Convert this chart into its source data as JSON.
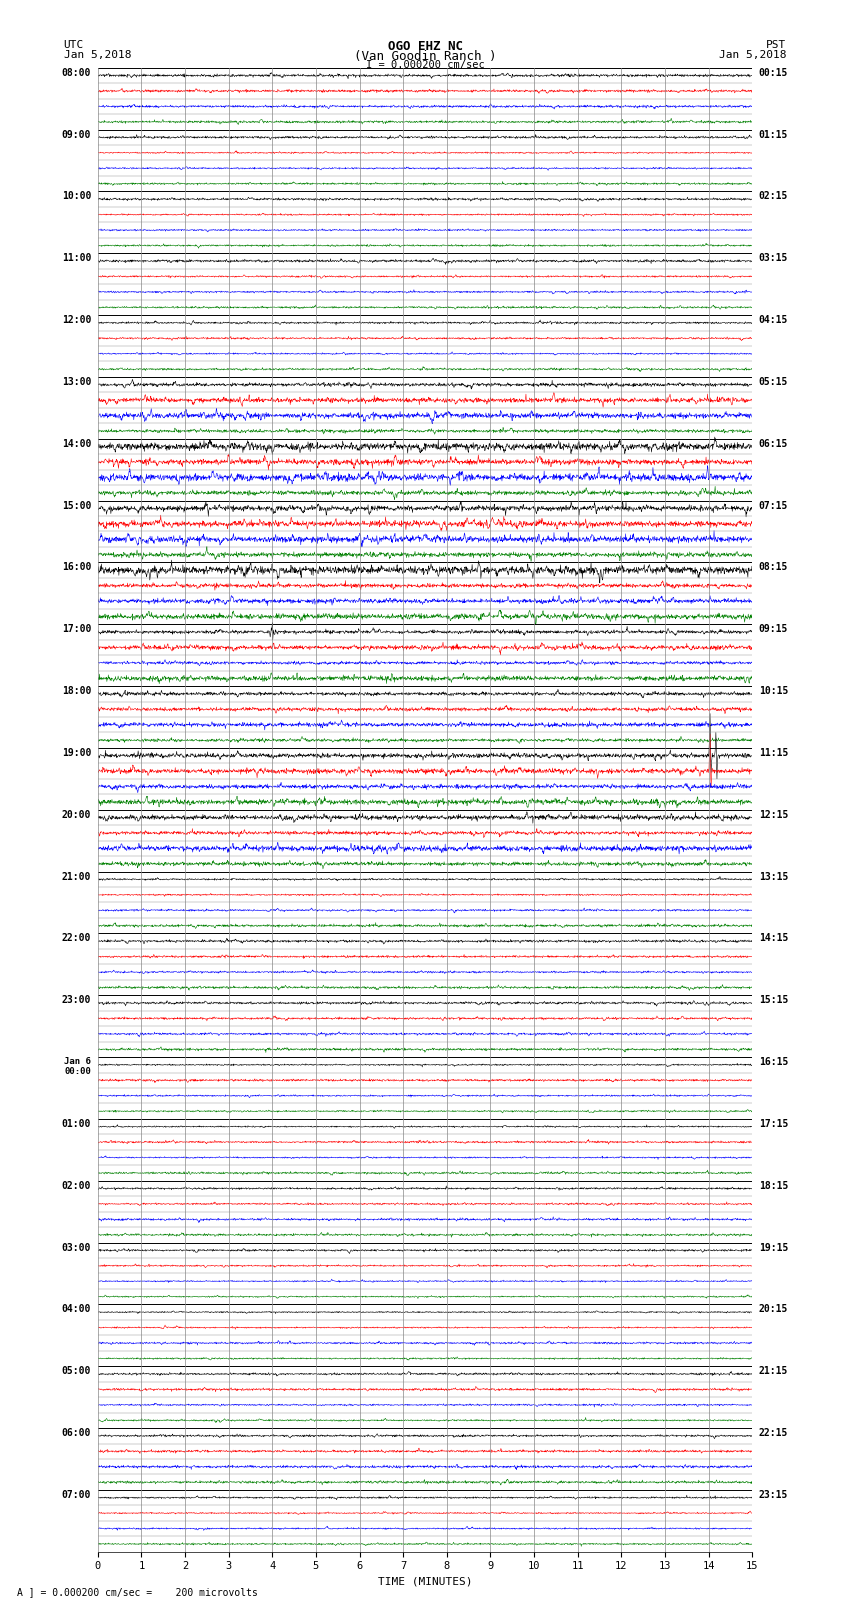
{
  "title_line1": "OGO EHZ NC",
  "title_line2": "(Van Goodin Ranch )",
  "title_line3": "I = 0.000200 cm/sec",
  "left_label_top": "UTC",
  "left_label_date": "Jan 5,2018",
  "right_label_top": "PST",
  "right_label_date": "Jan 5,2018",
  "bottom_label": "TIME (MINUTES)",
  "bottom_note": "A ] = 0.000200 cm/sec =    200 microvolts",
  "x_min": 0,
  "x_max": 15,
  "bg_color": "#ffffff",
  "trace_colors": [
    "#000000",
    "#ff0000",
    "#0000ff",
    "#008000"
  ],
  "grid_color_major": "#000000",
  "grid_color_minor": "#aaaaaa",
  "text_color": "#000000",
  "noise_amplitude": 0.04,
  "spike_amplitude": 0.18,
  "total_subrows": 96
}
